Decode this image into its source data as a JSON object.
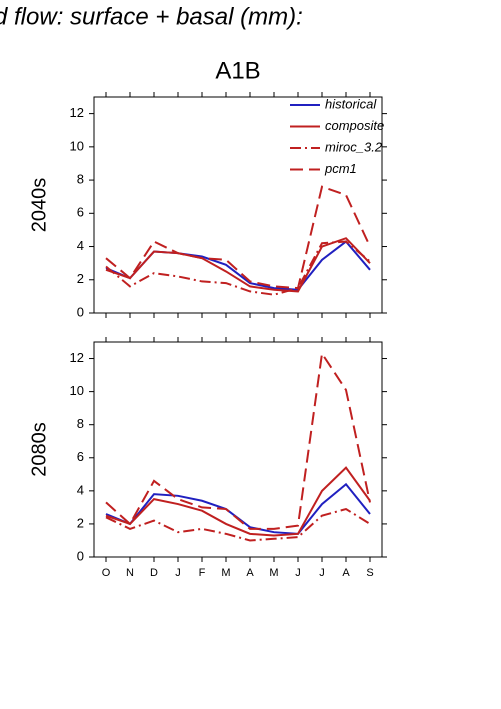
{
  "title": "d flow: surface + basal (mm):",
  "subtitle": "A1B",
  "chart_data": [
    {
      "type": "line",
      "ylabel": "2040s",
      "legend": "upper right",
      "categories": [
        null,
        null,
        null,
        null,
        null,
        null,
        null,
        null,
        null,
        null,
        null,
        null
      ],
      "ylim": [
        0,
        13
      ],
      "yticks": [
        0,
        2,
        4,
        6,
        8,
        10,
        12
      ],
      "series": [
        {
          "name": "historical",
          "color": "#2020c0",
          "style": "solid",
          "values": [
            2.7,
            2.1,
            3.7,
            3.6,
            3.4,
            2.9,
            1.8,
            1.5,
            1.4,
            3.2,
            4.3,
            2.6
          ]
        },
        {
          "name": "composite",
          "color": "#c02020",
          "style": "solid",
          "values": [
            2.6,
            2.1,
            3.7,
            3.6,
            3.3,
            2.5,
            1.6,
            1.4,
            1.3,
            4.0,
            4.5,
            3.0
          ]
        },
        {
          "name": "miroc_3.2",
          "color": "#c02020",
          "style": "dashdot",
          "values": [
            2.8,
            1.6,
            2.4,
            2.2,
            1.9,
            1.8,
            1.3,
            1.1,
            1.5,
            4.2,
            4.3,
            3.1
          ]
        },
        {
          "name": "pcm1",
          "color": "#c02020",
          "style": "dashed",
          "values": [
            3.3,
            2.1,
            4.3,
            3.6,
            3.3,
            3.2,
            1.9,
            1.6,
            1.5,
            7.6,
            7.1,
            4.0
          ]
        }
      ]
    },
    {
      "type": "line",
      "ylabel": "2080s",
      "categories": [
        "O",
        "N",
        "D",
        "J",
        "F",
        "M",
        "A",
        "M",
        "J",
        "J",
        "A",
        "S"
      ],
      "ylim": [
        0,
        13
      ],
      "yticks": [
        0,
        2,
        4,
        6,
        8,
        10,
        12
      ],
      "series": [
        {
          "color": "#2020c0",
          "style": "solid",
          "values": [
            2.6,
            2.0,
            3.8,
            3.7,
            3.4,
            2.9,
            1.8,
            1.5,
            1.4,
            3.2,
            4.4,
            2.6
          ]
        },
        {
          "color": "#c02020",
          "style": "solid",
          "values": [
            2.5,
            2.0,
            3.5,
            3.2,
            2.8,
            2.0,
            1.4,
            1.3,
            1.4,
            4.0,
            5.4,
            3.4
          ]
        },
        {
          "color": "#c02020",
          "style": "dashdot",
          "values": [
            2.4,
            1.7,
            2.2,
            1.5,
            1.7,
            1.4,
            1.0,
            1.1,
            1.2,
            2.5,
            2.9,
            2.0
          ]
        },
        {
          "color": "#c02020",
          "style": "dashed",
          "values": [
            3.3,
            2.0,
            4.6,
            3.5,
            3.0,
            2.9,
            1.7,
            1.7,
            1.9,
            12.3,
            10.1,
            3.3
          ]
        }
      ]
    }
  ]
}
